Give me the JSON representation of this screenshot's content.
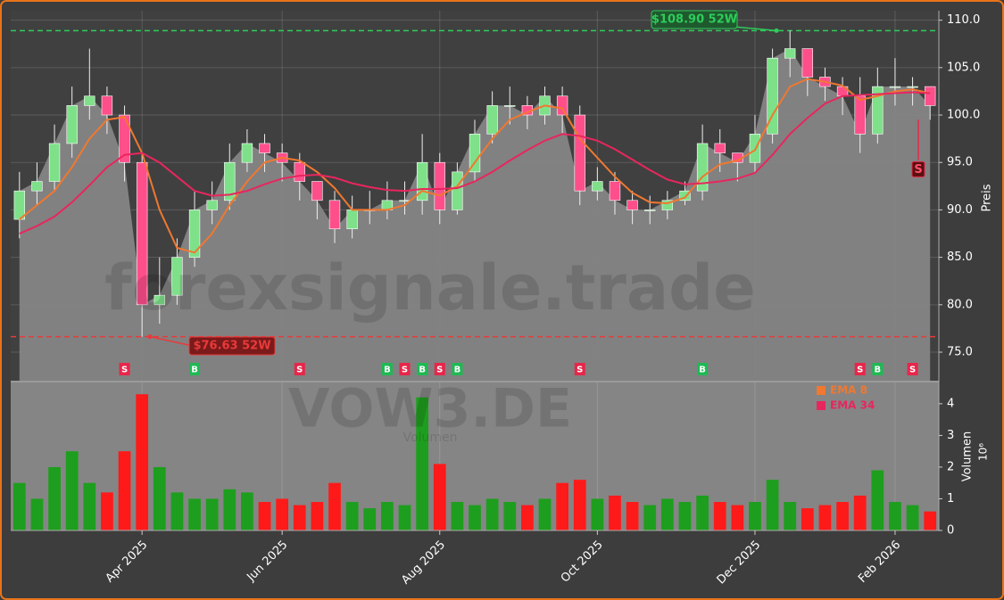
{
  "chart_data": {
    "type": "candlestick",
    "watermark": "forexsignale.trade",
    "symbol_watermark": "VOW3.DE",
    "sub_watermark": "Volumen",
    "y_label": "Preis",
    "y2_label": "Volumen",
    "y2_scale_label": "10⁶",
    "categories": [
      null,
      null,
      null,
      null,
      null,
      null,
      null,
      "Apr 2025",
      null,
      null,
      null,
      null,
      null,
      null,
      null,
      "Jun 2025",
      null,
      null,
      null,
      null,
      null,
      null,
      null,
      null,
      "Aug 2025",
      null,
      null,
      null,
      null,
      null,
      null,
      null,
      null,
      "Oct 2025",
      null,
      null,
      null,
      null,
      null,
      null,
      null,
      null,
      "Dec 2025",
      null,
      null,
      null,
      null,
      null,
      null,
      null,
      "Feb 2026",
      null,
      null
    ],
    "open": [
      89,
      92,
      93,
      97,
      101,
      102,
      100,
      95,
      80,
      81,
      85,
      90,
      91,
      95,
      97,
      96,
      95,
      93,
      91,
      88,
      90,
      90,
      91,
      91,
      95,
      90,
      94,
      98,
      101,
      101,
      100,
      102,
      100,
      92,
      93,
      91,
      90,
      90,
      91,
      92,
      97,
      96,
      95,
      98,
      106,
      107,
      104,
      103,
      102,
      98,
      103,
      103,
      103
    ],
    "high": [
      94,
      95,
      99,
      103,
      107,
      103,
      101,
      96,
      85,
      87,
      92,
      93,
      97,
      98.5,
      98,
      97,
      96,
      93,
      92,
      91.5,
      92,
      93,
      93,
      98,
      96,
      95,
      99.5,
      102.5,
      103,
      102,
      103,
      103,
      101,
      94.5,
      94,
      92,
      91.5,
      92,
      93,
      99,
      98.5,
      96,
      100,
      107,
      108.9,
      107,
      105,
      104,
      104,
      105,
      106,
      104,
      103
    ],
    "low": [
      87,
      90.5,
      92,
      95.5,
      99.5,
      98,
      93,
      76.63,
      78,
      80,
      84,
      88.5,
      90,
      94,
      94,
      93,
      91,
      89,
      86.5,
      87,
      88.5,
      89,
      89.5,
      89.5,
      88.5,
      89.5,
      93,
      97,
      99,
      98.5,
      99,
      98,
      90.5,
      91,
      89.5,
      88.5,
      88.5,
      89,
      90.5,
      91,
      94,
      93,
      94,
      97,
      104,
      102,
      101.5,
      100,
      96,
      97,
      101,
      101,
      99.5
    ],
    "close": [
      92,
      93,
      97,
      101,
      102,
      100,
      95,
      80,
      81,
      85,
      90,
      91,
      95,
      97,
      96,
      95,
      93,
      91,
      88,
      90,
      90,
      91,
      91,
      95,
      90,
      94,
      98,
      101,
      101,
      100,
      102,
      100,
      92,
      93,
      91,
      90,
      90,
      91,
      92,
      97,
      96,
      95,
      98,
      106,
      107,
      104,
      103,
      102,
      98,
      103,
      103,
      103,
      101
    ],
    "up_color": "#7fe08a",
    "down_color": "#ff4f8b",
    "area_color": "#858585",
    "ema_series": [
      {
        "name": "EMA 8",
        "color": "#f07830",
        "values": [
          89,
          90.5,
          92,
          94.5,
          97.5,
          99.5,
          99.8,
          96,
          90,
          86,
          85.5,
          87.5,
          90.5,
          93,
          95,
          95.5,
          95.2,
          94,
          92.3,
          90,
          90,
          90,
          90.5,
          92,
          91.5,
          92.5,
          95,
          97.5,
          99.5,
          100.3,
          101,
          100.7,
          97.5,
          95.5,
          93.5,
          91.8,
          90.8,
          90.7,
          91.3,
          93.5,
          94.8,
          95.2,
          96.3,
          100,
          103,
          103.8,
          103.5,
          103.1,
          101.6,
          102,
          102.5,
          102.7,
          102.3
        ]
      },
      {
        "name": "EMA 34",
        "color": "#e8265e",
        "values": [
          87.5,
          88.3,
          89.3,
          90.8,
          92.6,
          94.5,
          95.8,
          96,
          95,
          93.5,
          92,
          91.5,
          91.6,
          92,
          92.7,
          93.3,
          93.6,
          93.7,
          93.4,
          92.8,
          92.4,
          92.1,
          92,
          92.2,
          92.2,
          92.3,
          93,
          94,
          95.2,
          96.3,
          97.3,
          98,
          97.8,
          97.3,
          96.4,
          95.3,
          94.2,
          93.2,
          92.7,
          92.8,
          93,
          93.3,
          93.9,
          95.8,
          98,
          99.7,
          101.2,
          102,
          102.1,
          102.2,
          102.3,
          102.4,
          102.3
        ]
      }
    ],
    "legend": "upper-right",
    "signals": [
      null,
      null,
      null,
      null,
      null,
      null,
      "S",
      null,
      null,
      null,
      "B",
      null,
      null,
      null,
      null,
      null,
      "S",
      null,
      null,
      null,
      null,
      "B",
      "S",
      "B",
      "S",
      "B",
      null,
      null,
      null,
      null,
      null,
      null,
      "S",
      null,
      null,
      null,
      null,
      null,
      null,
      "B",
      null,
      null,
      null,
      null,
      null,
      null,
      null,
      null,
      "S",
      "B",
      null,
      "S",
      null
    ],
    "signal_colors": {
      "B": "#1fb954",
      "S": "#e8264a"
    },
    "last_signal": "S",
    "high_52w": {
      "value": 108.9,
      "label": "$108.90 52W",
      "color": "#2ecc5a"
    },
    "low_52w": {
      "value": 76.63,
      "label": "$76.63 52W",
      "color": "#e83a3a"
    },
    "ylim": [
      71.9,
      111.0
    ],
    "yticks": [
      {
        "value": 75,
        "label": "75.0"
      },
      {
        "value": 80,
        "label": "80.0"
      },
      {
        "value": 85,
        "label": "85.0"
      },
      {
        "value": 90,
        "label": "90.0"
      },
      {
        "value": 95,
        "label": "95.0"
      },
      {
        "value": 100,
        "label": "100.0"
      },
      {
        "value": 105,
        "label": "105.0"
      },
      {
        "value": 110,
        "label": "110.0"
      }
    ],
    "volume": [
      1.5,
      1.0,
      2.0,
      2.5,
      1.5,
      1.2,
      2.5,
      4.3,
      2.0,
      1.2,
      1.0,
      1.0,
      1.3,
      1.2,
      0.9,
      1.0,
      0.8,
      0.9,
      1.5,
      0.9,
      0.7,
      0.9,
      0.8,
      4.2,
      2.1,
      0.9,
      0.8,
      1.0,
      0.9,
      0.8,
      1.0,
      1.5,
      1.6,
      1.0,
      1.1,
      0.9,
      0.8,
      1.0,
      0.9,
      1.1,
      0.9,
      0.8,
      0.9,
      1.6,
      0.9,
      0.7,
      0.8,
      0.9,
      1.1,
      1.9,
      0.9,
      0.8,
      0.6
    ],
    "volume_up_color": "#1e9e1e",
    "volume_down_color": "#ff1a1a",
    "y2lim": [
      0,
      4.7
    ],
    "y2ticks": [
      0,
      1,
      2,
      3,
      4
    ],
    "grid": true
  }
}
